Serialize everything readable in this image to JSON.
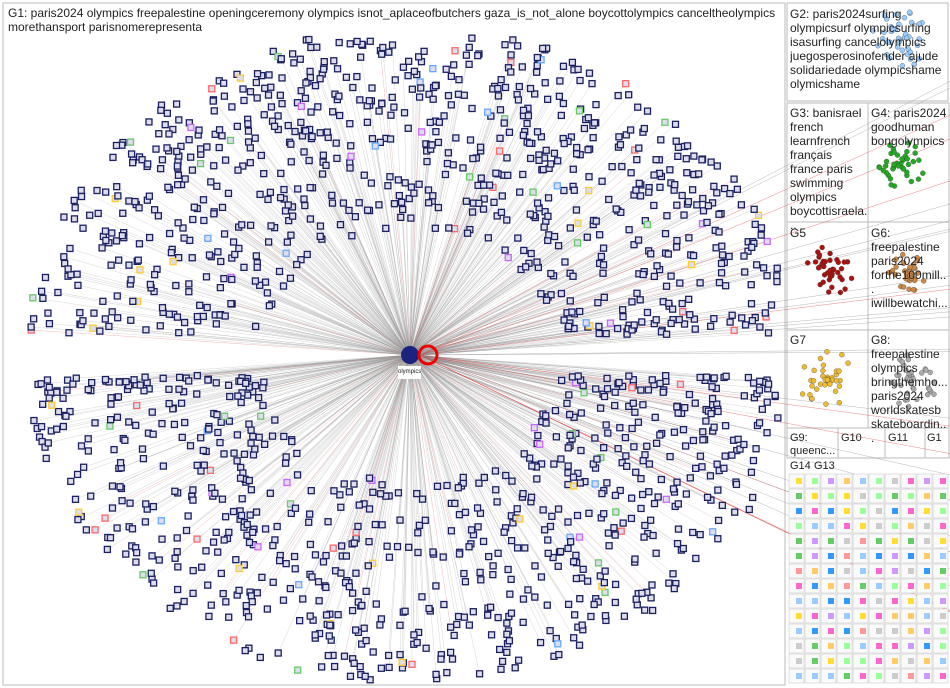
{
  "groups": [
    {
      "label": "G1: paris2024 olympics freepalestine openingceremony olympics isnot_aplaceofbutchers gaza_is_not_alone boycottolympics canceltheolympics morethansport parisnomerepresenta"
    },
    {
      "label": "G2: paris2024surfing olympicsurf olympicsurfing isasurfing cancelolympics juegosperosinofender ajude solidariedade olympicshame olymicshame"
    },
    {
      "label": "G3: banisrael french learnfrench français france paris swimming olympics boycottisraela..."
    },
    {
      "label": "G4: paris2024 goodhuman bongolympics"
    },
    {
      "label": "G5"
    },
    {
      "label": "G6: freepalestine paris2024 forthe100mill... iwillbewatchi..."
    },
    {
      "label": "G7"
    },
    {
      "label": "G8: freepalestine olympics bringthemho... paris2024 worldskatesb skateboardin..."
    },
    {
      "label": "G9: queenc..."
    },
    {
      "label": "G10"
    },
    {
      "label": "G11"
    },
    {
      "label": "G1"
    },
    {
      "label": "G14"
    },
    {
      "label": "G13"
    }
  ],
  "center_label": "olympics"
}
